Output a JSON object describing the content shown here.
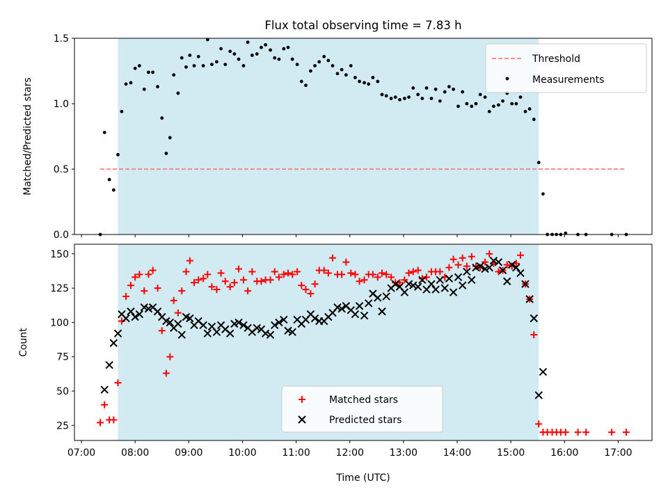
{
  "title": "Flux total observing time = 7.83 h",
  "colors": {
    "shade": "#add8e6",
    "threshold": "#ff6a6a",
    "measurements": "#000000",
    "matched": "#ff0000",
    "predicted": "#000000"
  },
  "chart_data": [
    {
      "type": "scatter",
      "ylabel": "Matched/Predicted stars",
      "xlim": [
        6.87,
        17.63
      ],
      "ylim": [
        0,
        1.5
      ],
      "yticks": [
        0.0,
        0.5,
        1.0,
        1.5
      ],
      "ytick_labels": [
        "0.0",
        "0.5",
        "1.0",
        "1.5"
      ],
      "shaded_x_range": [
        7.68,
        15.52
      ],
      "legend": {
        "position": "top-right",
        "threshold": "Threshold",
        "measurements": "Measurements"
      },
      "threshold": {
        "value": 0.5,
        "x_range": [
          7.35,
          17.15
        ]
      },
      "series": [
        {
          "name": "Measurements",
          "x": [
            7.35,
            7.43,
            7.52,
            7.6,
            7.68,
            7.75,
            7.83,
            7.92,
            8.0,
            8.08,
            8.17,
            8.25,
            8.33,
            8.42,
            8.5,
            8.58,
            8.65,
            8.72,
            8.8,
            8.87,
            8.95,
            9.02,
            9.1,
            9.18,
            9.27,
            9.35,
            9.43,
            9.52,
            9.6,
            9.68,
            9.77,
            9.85,
            9.93,
            10.02,
            10.1,
            10.18,
            10.27,
            10.35,
            10.43,
            10.52,
            10.6,
            10.68,
            10.77,
            10.85,
            10.93,
            11.02,
            11.1,
            11.18,
            11.27,
            11.35,
            11.43,
            11.52,
            11.6,
            11.68,
            11.77,
            11.85,
            11.93,
            12.02,
            12.1,
            12.18,
            12.27,
            12.35,
            12.43,
            12.52,
            12.6,
            12.68,
            12.77,
            12.85,
            12.93,
            13.02,
            13.1,
            13.18,
            13.27,
            13.35,
            13.43,
            13.52,
            13.6,
            13.68,
            13.77,
            13.85,
            13.93,
            14.02,
            14.1,
            14.18,
            14.27,
            14.35,
            14.43,
            14.52,
            14.6,
            14.68,
            14.77,
            14.85,
            14.93,
            15.02,
            15.1,
            15.18,
            15.27,
            15.35,
            15.43,
            15.52,
            15.6,
            15.68,
            15.77,
            15.85,
            15.93,
            16.02,
            16.25,
            16.4,
            16.88,
            17.15
          ],
          "y": [
            0.0,
            0.78,
            0.42,
            0.34,
            0.61,
            0.94,
            1.15,
            1.16,
            1.27,
            1.29,
            1.11,
            1.24,
            1.24,
            1.13,
            0.89,
            0.62,
            0.74,
            1.22,
            1.08,
            1.35,
            1.28,
            1.37,
            1.29,
            1.36,
            1.29,
            1.49,
            1.3,
            1.32,
            1.42,
            1.3,
            1.4,
            1.38,
            1.34,
            1.29,
            1.47,
            1.37,
            1.38,
            1.43,
            1.45,
            1.41,
            1.35,
            1.34,
            1.42,
            1.43,
            1.34,
            1.3,
            1.17,
            1.14,
            1.25,
            1.29,
            1.32,
            1.36,
            1.33,
            1.29,
            1.23,
            1.26,
            1.22,
            1.29,
            1.2,
            1.17,
            1.16,
            1.15,
            1.2,
            1.17,
            1.07,
            1.06,
            1.04,
            1.05,
            1.03,
            1.04,
            1.05,
            1.12,
            1.07,
            1.04,
            1.12,
            1.04,
            1.11,
            1.02,
            1.09,
            1.13,
            1.11,
            0.98,
            1.09,
            1.0,
            0.98,
            1.0,
            1.07,
            1.05,
            0.94,
            0.98,
            0.99,
            1.02,
            1.08,
            1.0,
            1.0,
            1.05,
            0.94,
            0.96,
            0.88,
            0.55,
            0.31,
            0.0,
            0.0,
            0.0,
            0.0,
            0.01,
            0.0,
            0.0,
            0.0,
            0.0
          ]
        }
      ]
    },
    {
      "type": "scatter",
      "xlabel": "Time (UTC)",
      "ylabel": "Count",
      "xlim": [
        6.87,
        17.63
      ],
      "ylim": [
        14,
        157
      ],
      "xticks": [
        7,
        8,
        9,
        10,
        11,
        12,
        13,
        14,
        15,
        16,
        17
      ],
      "xtick_labels": [
        "07:00",
        "08:00",
        "09:00",
        "10:00",
        "11:00",
        "12:00",
        "13:00",
        "14:00",
        "15:00",
        "16:00",
        "17:00"
      ],
      "yticks": [
        25,
        50,
        75,
        100,
        125,
        150
      ],
      "ytick_labels": [
        "25",
        "50",
        "75",
        "100",
        "125",
        "150"
      ],
      "shaded_x_range": [
        7.68,
        15.52
      ],
      "legend": {
        "position": "lower-center"
      },
      "series": [
        {
          "name": "Matched stars",
          "marker": "plus",
          "x": [
            7.35,
            7.43,
            7.52,
            7.6,
            7.68,
            7.75,
            7.83,
            7.92,
            8.0,
            8.08,
            8.17,
            8.25,
            8.33,
            8.42,
            8.5,
            8.58,
            8.65,
            8.72,
            8.8,
            8.87,
            8.95,
            9.02,
            9.1,
            9.18,
            9.27,
            9.35,
            9.43,
            9.52,
            9.6,
            9.68,
            9.77,
            9.85,
            9.93,
            10.02,
            10.1,
            10.18,
            10.27,
            10.35,
            10.43,
            10.52,
            10.6,
            10.68,
            10.77,
            10.85,
            10.93,
            11.02,
            11.1,
            11.18,
            11.27,
            11.35,
            11.43,
            11.52,
            11.6,
            11.68,
            11.77,
            11.85,
            11.93,
            12.02,
            12.1,
            12.18,
            12.27,
            12.35,
            12.43,
            12.52,
            12.6,
            12.68,
            12.77,
            12.85,
            12.93,
            13.02,
            13.1,
            13.18,
            13.27,
            13.35,
            13.43,
            13.52,
            13.6,
            13.68,
            13.77,
            13.85,
            13.93,
            14.02,
            14.1,
            14.18,
            14.27,
            14.35,
            14.43,
            14.52,
            14.6,
            14.68,
            14.77,
            14.85,
            14.93,
            15.02,
            15.1,
            15.18,
            15.27,
            15.35,
            15.43,
            15.52,
            15.6,
            15.68,
            15.77,
            15.85,
            15.93,
            16.02,
            16.25,
            16.4,
            16.88,
            17.15
          ],
          "y": [
            27,
            40,
            29,
            29,
            56,
            101,
            119,
            127,
            133,
            135,
            123,
            135,
            138,
            125,
            94,
            63,
            75,
            116,
            107,
            123,
            137,
            145,
            129,
            131,
            132,
            135,
            126,
            124,
            136,
            130,
            126,
            129,
            139,
            131,
            123,
            137,
            130,
            130,
            131,
            131,
            137,
            133,
            135,
            136,
            135,
            137,
            127,
            124,
            121,
            128,
            138,
            138,
            136,
            147,
            135,
            135,
            144,
            136,
            135,
            130,
            131,
            135,
            135,
            133,
            136,
            135,
            133,
            129,
            129,
            131,
            136,
            137,
            138,
            132,
            133,
            137,
            137,
            137,
            133,
            140,
            146,
            142,
            147,
            141,
            148,
            141,
            140,
            144,
            150,
            143,
            137,
            138,
            142,
            141,
            143,
            149,
            128,
            117,
            91,
            26,
            20,
            20,
            20,
            20,
            20,
            20,
            20,
            20,
            20,
            20
          ]
        },
        {
          "name": "Predicted stars",
          "marker": "x",
          "x": [
            7.43,
            7.52,
            7.6,
            7.68,
            7.75,
            7.83,
            7.92,
            8.0,
            8.08,
            8.17,
            8.25,
            8.33,
            8.42,
            8.5,
            8.58,
            8.65,
            8.72,
            8.8,
            8.87,
            8.95,
            9.02,
            9.1,
            9.18,
            9.27,
            9.35,
            9.43,
            9.52,
            9.6,
            9.68,
            9.77,
            9.85,
            9.93,
            10.02,
            10.1,
            10.18,
            10.27,
            10.35,
            10.43,
            10.52,
            10.6,
            10.68,
            10.77,
            10.85,
            10.93,
            11.02,
            11.1,
            11.18,
            11.27,
            11.35,
            11.43,
            11.52,
            11.6,
            11.68,
            11.77,
            11.85,
            11.93,
            12.02,
            12.1,
            12.18,
            12.27,
            12.35,
            12.43,
            12.52,
            12.6,
            12.68,
            12.77,
            12.85,
            12.93,
            13.02,
            13.1,
            13.18,
            13.27,
            13.35,
            13.43,
            13.52,
            13.6,
            13.68,
            13.77,
            13.85,
            13.93,
            14.02,
            14.1,
            14.18,
            14.27,
            14.35,
            14.43,
            14.52,
            14.6,
            14.68,
            14.77,
            14.85,
            14.93,
            15.02,
            15.1,
            15.18,
            15.27,
            15.35,
            15.43,
            15.52,
            15.6
          ],
          "y": [
            51,
            69,
            85,
            92,
            106,
            103,
            108,
            104,
            106,
            111,
            110,
            111,
            108,
            104,
            101,
            100,
            96,
            99,
            91,
            104,
            103,
            98,
            101,
            98,
            92,
            97,
            93,
            98,
            95,
            92,
            99,
            100,
            98,
            96,
            93,
            96,
            95,
            92,
            91,
            98,
            100,
            102,
            94,
            93,
            102,
            99,
            102,
            106,
            103,
            101,
            101,
            104,
            107,
            111,
            110,
            112,
            109,
            106,
            112,
            105,
            114,
            121,
            118,
            108,
            119,
            125,
            128,
            126,
            122,
            128,
            127,
            126,
            131,
            124,
            128,
            124,
            131,
            125,
            132,
            122,
            133,
            127,
            137,
            131,
            140,
            141,
            139,
            140,
            145,
            144,
            138,
            130,
            142,
            140,
            136,
            128,
            117,
            103,
            47,
            64
          ]
        }
      ]
    }
  ]
}
